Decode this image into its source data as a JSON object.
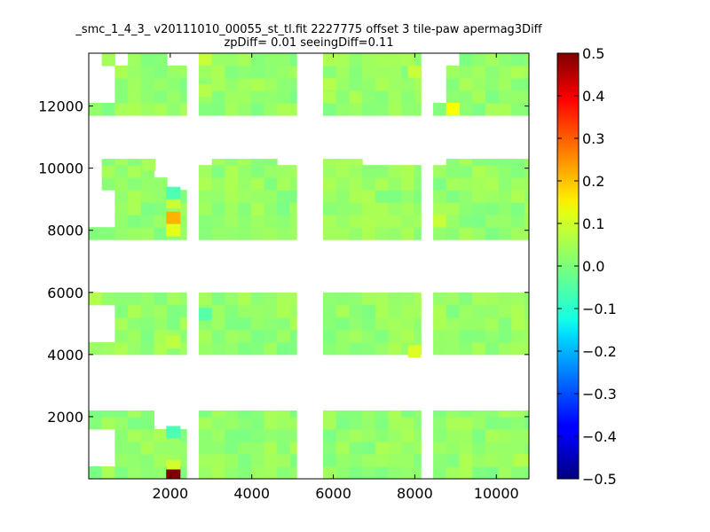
{
  "chart_data": {
    "type": "heatmap",
    "title_line1": "_smc_1_4_3_ v20111010_00055_st_tl.fit 2227775 offset 3 tile-paw apermag3Diff",
    "title_line2": "zpDiff= 0.01 seeingDiff=0.11",
    "xlim": [
      0,
      10800
    ],
    "ylim": [
      0,
      13700
    ],
    "x_ticks": [
      2000,
      4000,
      6000,
      8000,
      10000
    ],
    "x_tick_labels": [
      "2000",
      "4000",
      "6000",
      "8000",
      "10000"
    ],
    "y_ticks": [
      2000,
      4000,
      6000,
      8000,
      10000,
      12000
    ],
    "y_tick_labels": [
      "2000",
      "4000",
      "6000",
      "8000",
      "10000",
      "12000"
    ],
    "colorbar": {
      "colormap": "jet",
      "vmin": -0.5,
      "vmax": 0.5,
      "ticks": [
        0.5,
        0.4,
        0.3,
        0.2,
        0.1,
        0.0,
        -0.1,
        -0.2,
        -0.3,
        -0.4,
        -0.5
      ],
      "tick_labels": [
        "0.5",
        "0.4",
        "0.3",
        "0.2",
        "0.1",
        "0.0",
        "−0.1",
        "−0.2",
        "−0.3",
        "−0.4",
        "−0.5"
      ]
    },
    "cell_size": [
      320,
      400
    ],
    "column_blocks": [
      [
        0,
        2400
      ],
      [
        2700,
        5100
      ],
      [
        5750,
        8150
      ],
      [
        8450,
        10800
      ]
    ],
    "row_blocks": [
      [
        0,
        2200
      ],
      [
        4000,
        6000
      ],
      [
        7700,
        10300
      ],
      [
        11700,
        13700
      ]
    ],
    "base_value": 0.02,
    "missing_cells": [
      {
        "x": [
          0,
          640
        ],
        "y": [
          400,
          1700
        ]
      },
      {
        "x": [
          0,
          640
        ],
        "y": [
          4500,
          5600
        ]
      },
      {
        "x": [
          0,
          640
        ],
        "y": [
          8100,
          9300
        ]
      },
      {
        "x": [
          0,
          640
        ],
        "y": [
          12100,
          13300
        ]
      },
      {
        "x": [
          0,
          320
        ],
        "y": [
          9300,
          10300
        ]
      },
      {
        "x": [
          0,
          320
        ],
        "y": [
          13300,
          13700
        ]
      },
      {
        "x": [
          640,
          960
        ],
        "y": [
          13300,
          13700
        ]
      },
      {
        "x": [
          1760,
          2400
        ],
        "y": [
          9700,
          10300
        ]
      },
      {
        "x": [
          1760,
          2400
        ],
        "y": [
          1700,
          2200
        ]
      },
      {
        "x": [
          2080,
          2400
        ],
        "y": [
          9300,
          9700
        ]
      },
      {
        "x": [
          2080,
          2400
        ],
        "y": [
          13300,
          13700
        ]
      },
      {
        "x": [
          2700,
          3020
        ],
        "y": [
          10000,
          10300
        ]
      },
      {
        "x": [
          4770,
          5100
        ],
        "y": [
          10000,
          10300
        ]
      },
      {
        "x": [
          6070,
          6390
        ],
        "y": [
          10000,
          10300
        ]
      },
      {
        "x": [
          6710,
          8150
        ],
        "y": [
          10000,
          10300
        ]
      },
      {
        "x": [
          8450,
          8770
        ],
        "y": [
          12100,
          13300
        ]
      },
      {
        "x": [
          8450,
          8770
        ],
        "y": [
          10000,
          10300
        ]
      },
      {
        "x": [
          8450,
          9100
        ],
        "y": [
          13300,
          13700
        ]
      }
    ],
    "highlight_cells": [
      {
        "x": [
          1900,
          2250
        ],
        "y": [
          0,
          400
        ],
        "value": 0.5
      },
      {
        "x": [
          1900,
          2250
        ],
        "y": [
          8200,
          8600
        ],
        "value": 0.2
      },
      {
        "x": [
          1900,
          2250
        ],
        "y": [
          7800,
          8200
        ],
        "value": 0.1
      },
      {
        "x": [
          1900,
          2250
        ],
        "y": [
          8700,
          9000
        ],
        "value": 0.07
      },
      {
        "x": [
          1900,
          2250
        ],
        "y": [
          1300,
          1700
        ],
        "value": -0.05
      },
      {
        "x": [
          1900,
          2250
        ],
        "y": [
          9000,
          9400
        ],
        "value": -0.05
      },
      {
        "x": [
          1900,
          2250
        ],
        "y": [
          300,
          600
        ],
        "value": 0.08
      },
      {
        "x": [
          1900,
          2250
        ],
        "y": [
          4200,
          4600
        ],
        "value": 0.06
      },
      {
        "x": [
          8770,
          9100
        ],
        "y": [
          11700,
          12100
        ],
        "value": 0.12
      },
      {
        "x": [
          8450,
          8770
        ],
        "y": [
          8100,
          8500
        ],
        "value": 0.07
      },
      {
        "x": [
          7830,
          8150
        ],
        "y": [
          3900,
          4300
        ],
        "value": 0.09
      },
      {
        "x": [
          7830,
          8150
        ],
        "y": [
          12900,
          13300
        ],
        "value": 0.07
      },
      {
        "x": [
          2700,
          3020
        ],
        "y": [
          13300,
          13700
        ],
        "value": 0.07
      },
      {
        "x": [
          2700,
          3020
        ],
        "y": [
          12300,
          12700
        ],
        "value": 0.05
      },
      {
        "x": [
          1320,
          1640
        ],
        "y": [
          9900,
          10300
        ],
        "value": 0.04
      },
      {
        "x": [
          6070,
          6390
        ],
        "y": [
          9900,
          10300
        ],
        "value": 0.04
      },
      {
        "x": [
          2700,
          3020
        ],
        "y": [
          5100,
          5500
        ],
        "value": -0.04
      },
      {
        "x": [
          0,
          320
        ],
        "y": [
          5600,
          6000
        ],
        "value": 0.05
      },
      {
        "x": [
          10440,
          10800
        ],
        "y": [
          400,
          800
        ],
        "value": 0.05
      },
      {
        "x": [
          5750,
          6070
        ],
        "y": [
          12500,
          12900
        ],
        "value": 0.05
      }
    ]
  }
}
